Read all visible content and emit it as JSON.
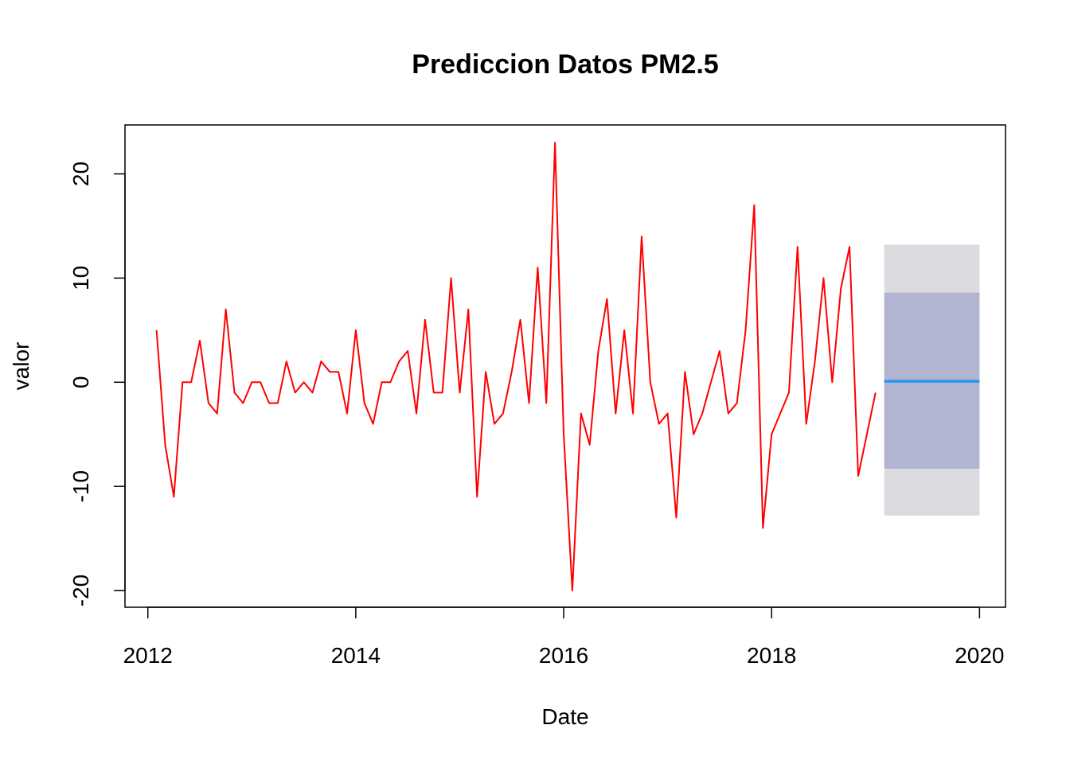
{
  "chart_data": {
    "type": "line",
    "title": "Prediccion Datos PM2.5",
    "xlabel": "Date",
    "ylabel": "valor",
    "xlim": [
      2011.78,
      2020.25
    ],
    "ylim": [
      -21.6,
      24.7
    ],
    "x_ticks": [
      2012,
      2014,
      2016,
      2018,
      2020
    ],
    "x_tick_labels": [
      "2012",
      "2014",
      "2016",
      "2018",
      "2020"
    ],
    "y_ticks": [
      -20,
      -10,
      0,
      10,
      20
    ],
    "y_tick_labels": [
      "-20",
      "-10",
      "0",
      "10",
      "20"
    ],
    "grid": false,
    "colors": {
      "series": "#ff0000",
      "forecast_line": "#2196f3",
      "pi95": "#dbdbdf",
      "pi80": "#b1b5d1"
    },
    "series": [
      {
        "start": 2012.0833,
        "step": 0.08333,
        "values": [
          5,
          -6,
          -11,
          0,
          0,
          4,
          -2,
          -3,
          7,
          -1,
          -2,
          0,
          0,
          -2,
          -2,
          2,
          -1,
          0,
          -1,
          2,
          1,
          1,
          -3,
          5,
          -2,
          -4,
          0,
          0,
          2,
          3,
          -3,
          6,
          -1,
          -1,
          10,
          -1,
          7,
          -11,
          1,
          -4,
          -3,
          1,
          6,
          -2,
          11,
          -2,
          23,
          -5,
          -20,
          -3,
          -6,
          3,
          8,
          -3,
          5,
          -3,
          14,
          0,
          -4,
          -3,
          -13,
          1,
          -5,
          -3,
          0,
          3,
          -3,
          -2,
          5,
          17,
          -14,
          -5,
          -3,
          -1,
          13,
          -4,
          2,
          10,
          0,
          9,
          13,
          -9,
          -5,
          -1
        ]
      }
    ],
    "forecast": {
      "x_start": 2019.0833,
      "x_end": 2020.0,
      "mean": 0.1,
      "lo80": -8.3,
      "hi80": 8.6,
      "lo95": -12.8,
      "hi95": 13.2
    }
  }
}
